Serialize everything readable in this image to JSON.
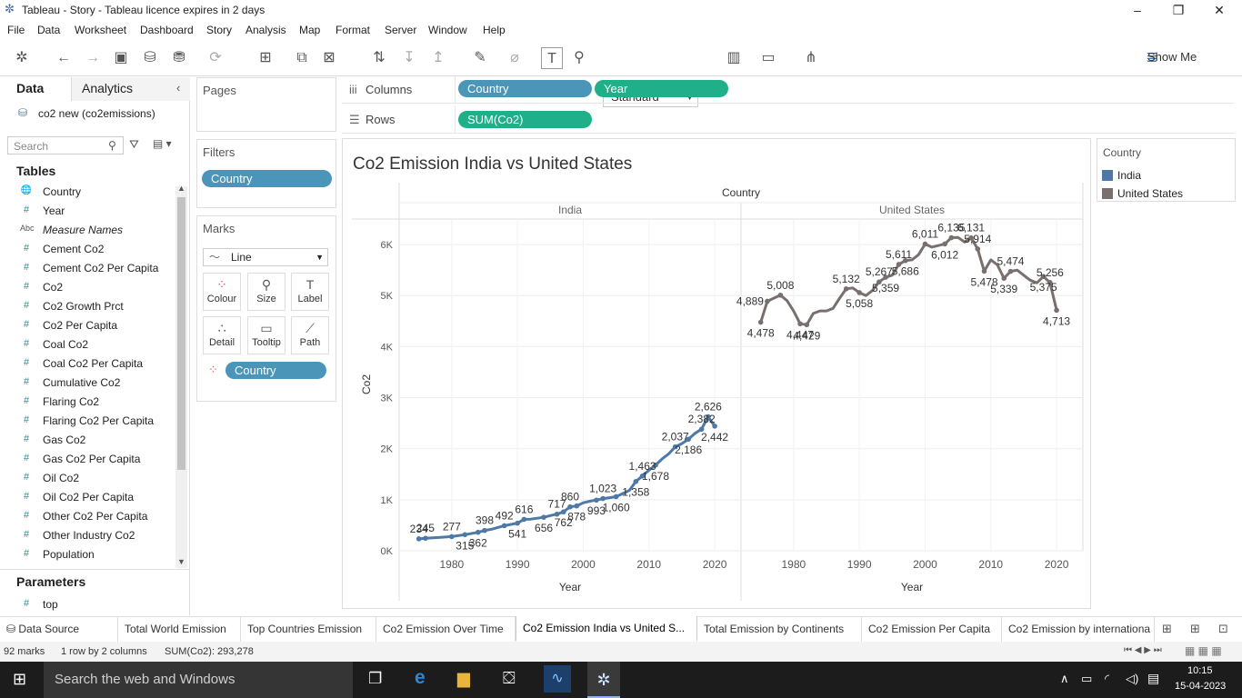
{
  "window": {
    "title": "Tableau - Story - Tableau licence expires in 2 days"
  },
  "menu": [
    "File",
    "Data",
    "Worksheet",
    "Dashboard",
    "Story",
    "Analysis",
    "Map",
    "Format",
    "Server",
    "Window",
    "Help"
  ],
  "toolbar": {
    "fit_value": "Standard",
    "show_me": "Show Me"
  },
  "datapane": {
    "tab_data": "Data",
    "tab_analytics": "Analytics",
    "datasource": "co2 new (co2emissions)",
    "search_placeholder": "Search",
    "tables_header": "Tables",
    "fields": [
      {
        "icon": "globe",
        "name": "Country"
      },
      {
        "icon": "#",
        "name": "Year"
      },
      {
        "icon": "Abc",
        "name": "Measure Names"
      },
      {
        "icon": "#",
        "name": "Cement Co2"
      },
      {
        "icon": "#",
        "name": "Cement Co2 Per Capita"
      },
      {
        "icon": "#",
        "name": "Co2"
      },
      {
        "icon": "#",
        "name": "Co2 Growth Prct"
      },
      {
        "icon": "#",
        "name": "Co2 Per Capita"
      },
      {
        "icon": "#",
        "name": "Coal Co2"
      },
      {
        "icon": "#",
        "name": "Coal Co2 Per Capita"
      },
      {
        "icon": "#",
        "name": "Cumulative Co2"
      },
      {
        "icon": "#",
        "name": "Flaring Co2"
      },
      {
        "icon": "#",
        "name": "Flaring Co2 Per Capita"
      },
      {
        "icon": "#",
        "name": "Gas Co2"
      },
      {
        "icon": "#",
        "name": "Gas Co2 Per Capita"
      },
      {
        "icon": "#",
        "name": "Oil Co2"
      },
      {
        "icon": "#",
        "name": "Oil Co2 Per Capita"
      },
      {
        "icon": "#",
        "name": "Other Co2 Per Capita"
      },
      {
        "icon": "#",
        "name": "Other Industry Co2"
      },
      {
        "icon": "#",
        "name": "Population"
      }
    ],
    "parameters_header": "Parameters",
    "parameters": [
      {
        "icon": "#",
        "name": "top"
      }
    ]
  },
  "cards": {
    "pages": "Pages",
    "filters": "Filters",
    "filter_pill": "Country",
    "marks": "Marks",
    "mark_type": "Line",
    "mark_buttons": [
      "Colour",
      "Size",
      "Label",
      "Detail",
      "Tooltip",
      "Path"
    ],
    "marks_pill": "Country"
  },
  "shelves": {
    "columns_label": "Columns",
    "rows_label": "Rows",
    "columns": [
      "Country",
      "Year"
    ],
    "rows": [
      "SUM(Co2)"
    ]
  },
  "legend": {
    "title": "Country",
    "items": [
      {
        "name": "India",
        "color": "#4e79a7"
      },
      {
        "name": "United States",
        "color": "#79706e"
      }
    ]
  },
  "sheet_tabs": [
    "Data Source",
    "Total World Emission",
    "Top Countries Emission",
    "Co2 Emission Over Time",
    "Co2 Emission India vs United S...",
    "Total Emission by Continents",
    "Co2 Emission Per Capita",
    "Co2 Emission by internationa"
  ],
  "active_tab": 4,
  "status": {
    "marks": "92 marks",
    "rows_cols": "1 row by 2 columns",
    "sum": "SUM(Co2): 293,278"
  },
  "taskbar": {
    "search": "Search the web and Windows",
    "time": "10:15",
    "date": "15-04-2023"
  },
  "chart_data": {
    "type": "line",
    "title": "Co2 Emission India vs United States",
    "column_header": "Country",
    "panes": [
      "India",
      "United States"
    ],
    "xlabel": "Year",
    "ylabel": "Co2",
    "x_ticks": [
      1980,
      1990,
      2000,
      2010,
      2020
    ],
    "y_ticks": [
      "0K",
      "1K",
      "2K",
      "3K",
      "4K",
      "5K",
      "6K"
    ],
    "ylim": [
      0,
      6500
    ],
    "xlim": [
      1972,
      2024
    ],
    "series": [
      {
        "name": "India",
        "color": "#4e79a7",
        "x": [
          1975,
          1976,
          1978,
          1980,
          1982,
          1984,
          1985,
          1986,
          1988,
          1990,
          1991,
          1992,
          1994,
          1995,
          1996,
          1997,
          1998,
          1999,
          2000,
          2001,
          2002,
          2003,
          2004,
          2005,
          2006,
          2007,
          2008,
          2009,
          2010,
          2011,
          2012,
          2013,
          2014,
          2015,
          2016,
          2017,
          2018,
          2019,
          2020
        ],
        "y": [
          234,
          245,
          260,
          277,
          315,
          362,
          398,
          420,
          492,
          541,
          616,
          620,
          656,
          690,
          717,
          762,
          860,
          878,
          940,
          970,
          993,
          1023,
          1040,
          1060,
          1120,
          1180,
          1358,
          1463,
          1580,
          1678,
          1800,
          1900,
          2037,
          2100,
          2186,
          2300,
          2382,
          2626,
          2442
        ]
      },
      {
        "name": "United States",
        "color": "#79706e",
        "x": [
          1975,
          1976,
          1977,
          1978,
          1979,
          1980,
          1981,
          1982,
          1983,
          1984,
          1985,
          1986,
          1987,
          1988,
          1989,
          1990,
          1991,
          1992,
          1993,
          1994,
          1995,
          1996,
          1997,
          1998,
          1999,
          2000,
          2001,
          2002,
          2003,
          2004,
          2005,
          2006,
          2007,
          2008,
          2009,
          2010,
          2011,
          2012,
          2013,
          2014,
          2015,
          2016,
          2017,
          2018,
          2019,
          2020
        ],
        "y": [
          4478,
          4889,
          4950,
          5008,
          4900,
          4700,
          4447,
          4429,
          4650,
          4700,
          4700,
          4750,
          4950,
          5132,
          5150,
          5058,
          5000,
          5100,
          5267,
          5359,
          5400,
          5611,
          5686,
          5700,
          5800,
          6011,
          5950,
          5980,
          6012,
          6135,
          6140,
          6050,
          6131,
          5914,
          5478,
          5700,
          5600,
          5339,
          5474,
          5500,
          5400,
          5300,
          5250,
          5375,
          5256,
          4713
        ]
      }
    ],
    "labels": [
      {
        "s": 0,
        "i": 0,
        "t": "234",
        "pos": "above"
      },
      {
        "s": 0,
        "i": 1,
        "t": "245",
        "pos": "above"
      },
      {
        "s": 0,
        "i": 3,
        "t": "277",
        "pos": "above"
      },
      {
        "s": 0,
        "i": 4,
        "t": "315",
        "pos": "below"
      },
      {
        "s": 0,
        "i": 5,
        "t": "362",
        "pos": "below"
      },
      {
        "s": 0,
        "i": 6,
        "t": "398",
        "pos": "above"
      },
      {
        "s": 0,
        "i": 8,
        "t": "492",
        "pos": "above"
      },
      {
        "s": 0,
        "i": 9,
        "t": "541",
        "pos": "below"
      },
      {
        "s": 0,
        "i": 10,
        "t": "616",
        "pos": "above"
      },
      {
        "s": 0,
        "i": 12,
        "t": "656",
        "pos": "below"
      },
      {
        "s": 0,
        "i": 14,
        "t": "717",
        "pos": "above"
      },
      {
        "s": 0,
        "i": 15,
        "t": "762",
        "pos": "below"
      },
      {
        "s": 0,
        "i": 16,
        "t": "860",
        "pos": "above"
      },
      {
        "s": 0,
        "i": 17,
        "t": "878",
        "pos": "below"
      },
      {
        "s": 0,
        "i": 20,
        "t": "993",
        "pos": "below"
      },
      {
        "s": 0,
        "i": 21,
        "t": "1,023",
        "pos": "above"
      },
      {
        "s": 0,
        "i": 23,
        "t": "1,060",
        "pos": "below"
      },
      {
        "s": 0,
        "i": 26,
        "t": "1,358",
        "pos": "below"
      },
      {
        "s": 0,
        "i": 27,
        "t": "1,463",
        "pos": "above"
      },
      {
        "s": 0,
        "i": 29,
        "t": "1,678",
        "pos": "below"
      },
      {
        "s": 0,
        "i": 32,
        "t": "2,037",
        "pos": "above"
      },
      {
        "s": 0,
        "i": 34,
        "t": "2,186",
        "pos": "below"
      },
      {
        "s": 0,
        "i": 36,
        "t": "2,382",
        "pos": "above"
      },
      {
        "s": 0,
        "i": 37,
        "t": "2,626",
        "pos": "above"
      },
      {
        "s": 0,
        "i": 38,
        "t": "2,442",
        "pos": "below"
      },
      {
        "s": 1,
        "i": 0,
        "t": "4,478",
        "pos": "below"
      },
      {
        "s": 1,
        "i": 1,
        "t": "4,889",
        "pos": "left"
      },
      {
        "s": 1,
        "i": 3,
        "t": "5,008",
        "pos": "above"
      },
      {
        "s": 1,
        "i": 6,
        "t": "4,447",
        "pos": "below"
      },
      {
        "s": 1,
        "i": 7,
        "t": "4,429",
        "pos": "below"
      },
      {
        "s": 1,
        "i": 13,
        "t": "5,132",
        "pos": "above"
      },
      {
        "s": 1,
        "i": 15,
        "t": "5,058",
        "pos": "below"
      },
      {
        "s": 1,
        "i": 18,
        "t": "5,267",
        "pos": "above"
      },
      {
        "s": 1,
        "i": 19,
        "t": "5,359",
        "pos": "below"
      },
      {
        "s": 1,
        "i": 21,
        "t": "5,611",
        "pos": "above"
      },
      {
        "s": 1,
        "i": 22,
        "t": "5,686",
        "pos": "below"
      },
      {
        "s": 1,
        "i": 25,
        "t": "6,011",
        "pos": "above"
      },
      {
        "s": 1,
        "i": 28,
        "t": "6,012",
        "pos": "below"
      },
      {
        "s": 1,
        "i": 29,
        "t": "6,135",
        "pos": "above"
      },
      {
        "s": 1,
        "i": 32,
        "t": "6,131",
        "pos": "above"
      },
      {
        "s": 1,
        "i": 33,
        "t": "5,914",
        "pos": "above"
      },
      {
        "s": 1,
        "i": 34,
        "t": "5,478",
        "pos": "below"
      },
      {
        "s": 1,
        "i": 37,
        "t": "5,339",
        "pos": "below"
      },
      {
        "s": 1,
        "i": 38,
        "t": "5,474",
        "pos": "above"
      },
      {
        "s": 1,
        "i": 43,
        "t": "5,375",
        "pos": "below"
      },
      {
        "s": 1,
        "i": 44,
        "t": "5,256",
        "pos": "above"
      },
      {
        "s": 1,
        "i": 45,
        "t": "4,713",
        "pos": "below"
      }
    ]
  }
}
